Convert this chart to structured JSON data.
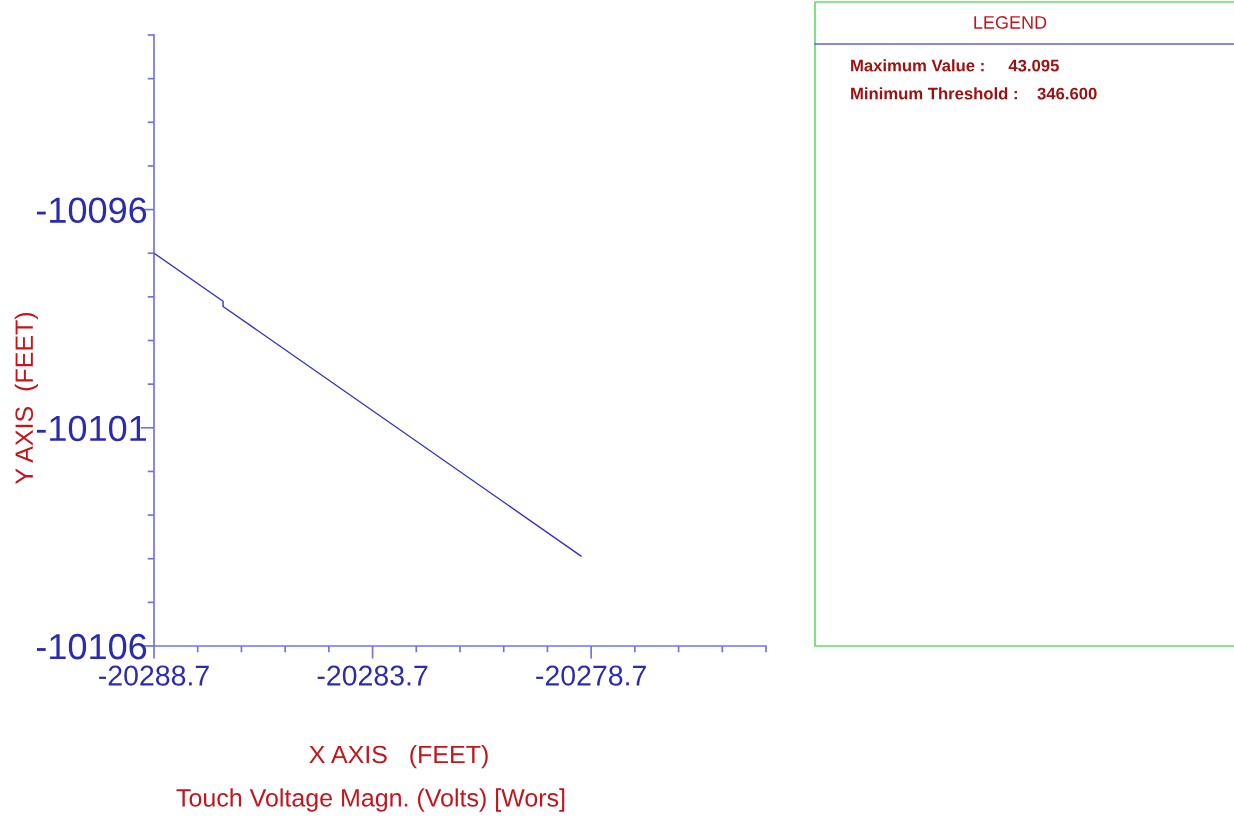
{
  "chart_data": {
    "type": "line",
    "title": "Touch Voltage Magn. (Volts) [Wors]",
    "xlabel": "X AXIS   (FEET)",
    "ylabel": "Y AXIS  (FEET)",
    "annotations": [
      "LEGEND",
      "Maximum Value :     43.095",
      "Minimum Threshold :    346.600"
    ],
    "x": [
      -20288.7,
      -20287.12,
      -20287.12,
      -20278.93
    ],
    "values": [
      -10097.0,
      -10098.1,
      -10098.22,
      -10103.94
    ],
    "color": "#3030d0",
    "line_style": "solid",
    "grid": false,
    "xlim": [
      -20288.7,
      -20274.7
    ],
    "xticks": [
      -20288.7,
      {
        "value": -20287.7,
        "label": null
      },
      {
        "value": -20286.7,
        "label": null
      },
      {
        "value": -20285.7,
        "label": null
      },
      {
        "value": -20284.7,
        "label": null
      },
      -20283.7,
      {
        "value": -20282.7,
        "label": null
      },
      {
        "value": -20281.7,
        "label": null
      },
      {
        "value": -20280.7,
        "label": null
      },
      {
        "value": -20279.7,
        "label": null
      },
      -20278.7,
      {
        "value": -20277.7,
        "label": null
      },
      {
        "value": -20276.7,
        "label": null
      },
      {
        "value": -20275.7,
        "label": null
      },
      {
        "value": -20274.7,
        "label": null
      }
    ],
    "ylim": [
      -10106,
      -10092
    ],
    "yticks": [
      -10106,
      {
        "value": -10105,
        "label": null
      },
      {
        "value": -10104,
        "label": null
      },
      {
        "value": -10103,
        "label": null
      },
      {
        "value": -10102,
        "label": null
      },
      -10101,
      {
        "value": -10100,
        "label": null
      },
      {
        "value": -10099,
        "label": null
      },
      {
        "value": -10098,
        "label": null
      },
      {
        "value": -10097,
        "label": null
      },
      -10096,
      {
        "value": -10095,
        "label": null
      },
      {
        "value": -10094,
        "label": null
      },
      {
        "value": -10093,
        "label": null
      },
      {
        "value": -10092,
        "label": null
      }
    ]
  }
}
